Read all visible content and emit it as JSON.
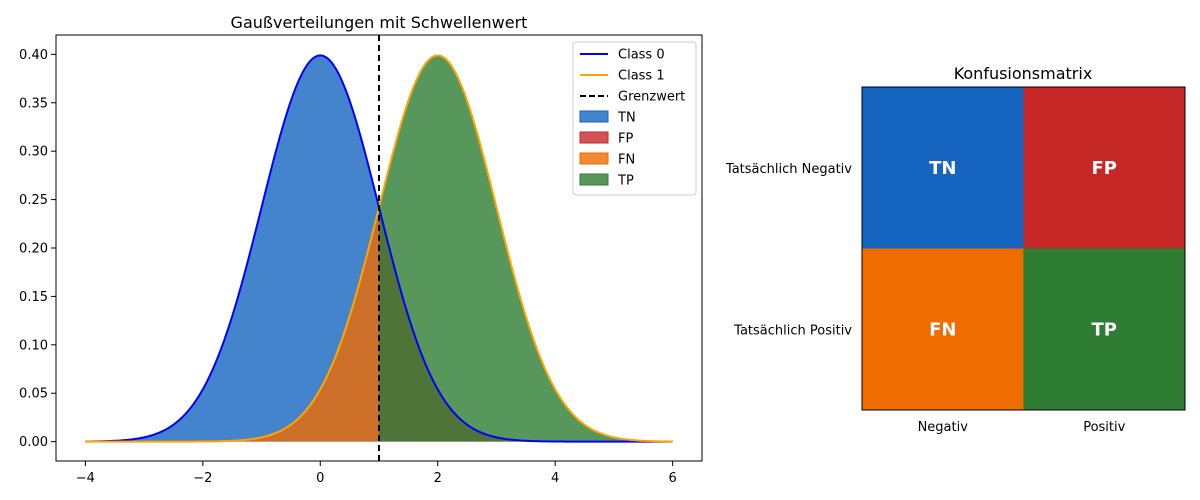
{
  "chart_data": [
    {
      "type": "line",
      "title": "Gaußverteilungen mit Schwellenwert",
      "xlabel": "",
      "ylabel": "",
      "xlim": [
        -4.5,
        6.5
      ],
      "ylim": [
        -0.02,
        0.42
      ],
      "x_ticks": [
        -4,
        -2,
        0,
        2,
        4,
        6
      ],
      "x_tick_labels": [
        "−4",
        "−2",
        "0",
        "2",
        "4",
        "6"
      ],
      "y_ticks": [
        0.0,
        0.05,
        0.1,
        0.15,
        0.2,
        0.25,
        0.3,
        0.35,
        0.4
      ],
      "y_tick_labels": [
        "0.00",
        "0.05",
        "0.10",
        "0.15",
        "0.20",
        "0.25",
        "0.30",
        "0.35",
        "0.40"
      ],
      "x_range": [
        -4,
        6
      ],
      "grid": false,
      "legend_position": "top-right",
      "threshold": 1,
      "series": [
        {
          "name": "Class 0",
          "kind": "normal-pdf",
          "mean": 0,
          "std": 1,
          "color": "#0000ff"
        },
        {
          "name": "Class 1",
          "kind": "normal-pdf",
          "mean": 2,
          "std": 1,
          "color": "#ffa500"
        }
      ],
      "threshold_line": {
        "name": "Grenzwert",
        "color": "#000000",
        "style": "dashed"
      },
      "regions": [
        {
          "name": "TN",
          "color": "#1565c0",
          "opacity": 0.8,
          "curve": "Class 0",
          "side": "left"
        },
        {
          "name": "FP",
          "color": "#c62828",
          "opacity": 0.8,
          "curve": "Class 0",
          "side": "right"
        },
        {
          "name": "FN",
          "color": "#ef6c00",
          "opacity": 0.8,
          "curve": "Class 1",
          "side": "left"
        },
        {
          "name": "TP",
          "color": "#2e7d32",
          "opacity": 0.8,
          "curve": "Class 1",
          "side": "right"
        }
      ]
    },
    {
      "type": "heatmap",
      "title": "Konfusionsmatrix",
      "row_labels": [
        "Tatsächlich Negativ",
        "Tatsächlich Positiv"
      ],
      "col_labels": [
        "Negativ",
        "Positiv"
      ],
      "cells": [
        [
          {
            "label": "TN",
            "color": "#1565c0"
          },
          {
            "label": "FP",
            "color": "#c62828"
          }
        ],
        [
          {
            "label": "FN",
            "color": "#ef6c00"
          },
          {
            "label": "TP",
            "color": "#2e7d32"
          }
        ]
      ]
    }
  ]
}
